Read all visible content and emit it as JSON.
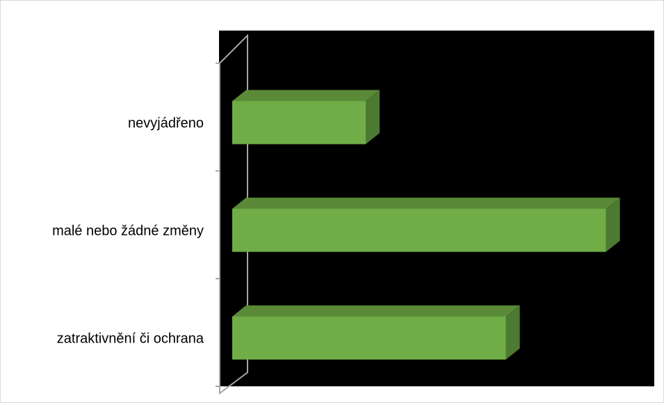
{
  "chart_data": {
    "type": "bar",
    "orientation": "horizontal",
    "three_d": true,
    "categories": [
      "nevyjádřeno",
      "malé nebo žádné změny",
      "zatraktivnění či ochrana"
    ],
    "values": [
      20,
      56,
      41
    ],
    "xlim": [
      0,
      60
    ],
    "grid": false,
    "legend": "none",
    "axis_tick_labels_visible": false
  },
  "colors": {
    "plot_background": "#000000",
    "bar_front": "#70ad47",
    "bar_top": "#5a8a37",
    "bar_side": "#4c7a30",
    "axis": "#a6a6a6",
    "label": "#000000"
  }
}
